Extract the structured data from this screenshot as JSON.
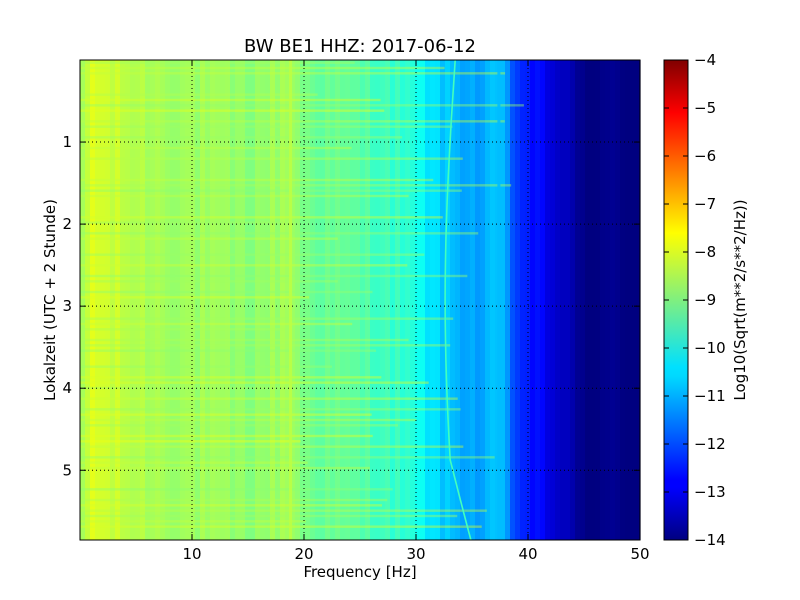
{
  "chart_data": {
    "type": "heatmap",
    "title": "BW BE1 HHZ: 2017-06-12",
    "xlabel": "Frequency [Hz]",
    "ylabel": "Lokalzeit (UTC + 2 Stunde)",
    "xlim": [
      0,
      50
    ],
    "ylim": [
      5.85,
      0
    ],
    "xticks": [
      10,
      20,
      30,
      40,
      50
    ],
    "yticks": [
      1,
      2,
      3,
      4,
      5
    ],
    "grid": "dotted",
    "colorbar": {
      "label": "Log10(Sqrt(m**2/s**2/Hz))",
      "range": [
        -14,
        -4
      ],
      "ticks": [
        -4,
        -5,
        -6,
        -7,
        -8,
        -9,
        -10,
        -11,
        -12,
        -13,
        -14
      ],
      "colormap": "jet"
    },
    "spectrum_profile": {
      "frequency_hz": [
        0,
        1,
        2,
        5,
        10,
        15,
        18.8,
        20,
        25,
        29,
        31,
        33,
        36,
        37.5,
        39,
        41,
        43,
        44.5,
        50
      ],
      "level": [
        -9.0,
        -8.0,
        -8.2,
        -8.5,
        -8.7,
        -8.9,
        -8.6,
        -9.1,
        -9.4,
        -9.8,
        -10.4,
        -10.9,
        -11.2,
        -10.8,
        -12.2,
        -12.8,
        -13.3,
        -13.9,
        -14.0
      ]
    }
  }
}
